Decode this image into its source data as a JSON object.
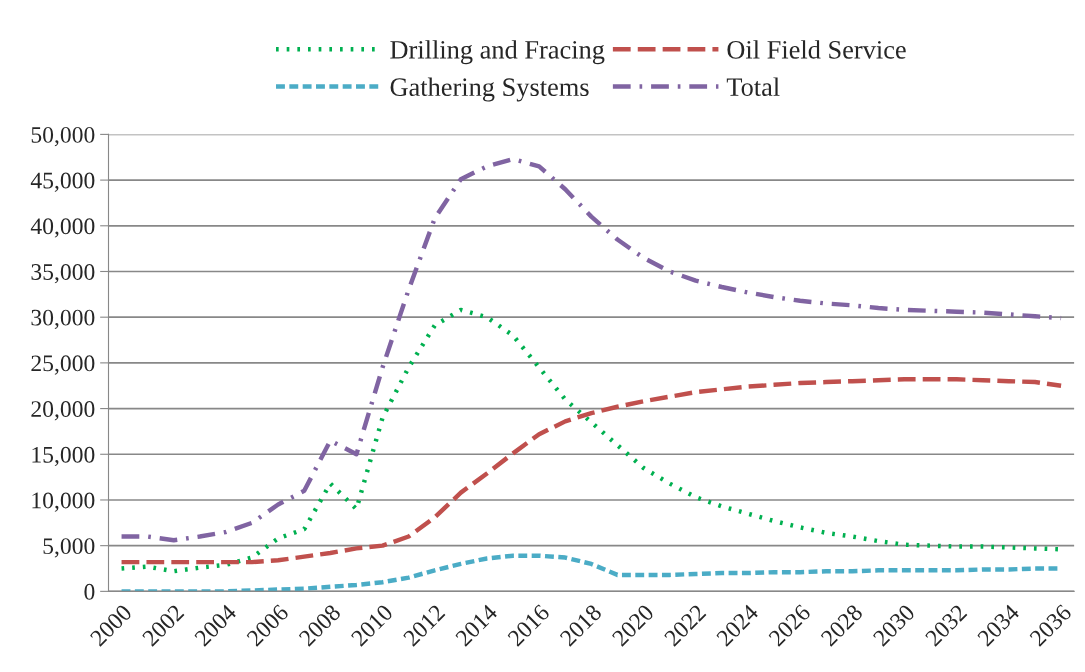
{
  "chart_data": {
    "type": "line",
    "categories": [
      "2000",
      null,
      "2002",
      null,
      "2004",
      null,
      "2006",
      null,
      "2008",
      null,
      "2010",
      null,
      "2012",
      null,
      "2014",
      null,
      "2016",
      null,
      "2018",
      null,
      "2020",
      null,
      "2022",
      null,
      "2024",
      null,
      "2026",
      null,
      "2028",
      null,
      "2030",
      null,
      "2032",
      null,
      "2034",
      null,
      "2036"
    ],
    "series": [
      {
        "name": "Drilling and Fracing",
        "color": "#00b050",
        "line_style": "dotted",
        "values": [
          2500,
          2700,
          2200,
          2600,
          2900,
          3700,
          5800,
          6800,
          11800,
          9000,
          19000,
          24500,
          29100,
          30800,
          30000,
          28000,
          24500,
          21000,
          18500,
          16000,
          13500,
          11800,
          10300,
          9300,
          8500,
          7700,
          7000,
          6400,
          6000,
          5500,
          5100,
          5000,
          4900,
          4900,
          4800,
          4700,
          4600
        ]
      },
      {
        "name": "Oil Field Service",
        "color": "#c0504d",
        "line_style": "dashed",
        "values": [
          3200,
          3200,
          3200,
          3200,
          3200,
          3200,
          3400,
          3800,
          4200,
          4700,
          5000,
          6000,
          8100,
          10800,
          12900,
          15100,
          17200,
          18600,
          19500,
          20200,
          20800,
          21300,
          21800,
          22100,
          22400,
          22600,
          22800,
          22900,
          23000,
          23100,
          23200,
          23200,
          23200,
          23100,
          23000,
          22900,
          22500
        ]
      },
      {
        "name": "Gathering Systems",
        "color": "#4bacc6",
        "line_style": "dashed",
        "values": [
          0,
          0,
          0,
          0,
          0,
          100,
          200,
          300,
          500,
          700,
          1000,
          1500,
          2300,
          3000,
          3600,
          3900,
          3900,
          3700,
          3000,
          1800,
          1800,
          1800,
          1900,
          2000,
          2000,
          2100,
          2100,
          2200,
          2200,
          2300,
          2300,
          2300,
          2300,
          2400,
          2400,
          2500,
          2500
        ]
      },
      {
        "name": "Total",
        "color": "#8064a2",
        "line_style": "dashdot",
        "values": [
          6000,
          6000,
          5600,
          6000,
          6500,
          7500,
          9500,
          11000,
          16500,
          15000,
          24500,
          33000,
          40800,
          45100,
          46500,
          47300,
          46500,
          44000,
          41000,
          38500,
          36500,
          35000,
          34000,
          33300,
          32700,
          32200,
          31800,
          31500,
          31300,
          31000,
          30800,
          30700,
          30600,
          30500,
          30300,
          30100,
          29900
        ]
      }
    ],
    "ylim": [
      0,
      50000
    ],
    "yticks": [
      {
        "value": 0,
        "label": "0"
      },
      {
        "value": 5000,
        "label": "5,000"
      },
      {
        "value": 10000,
        "label": "10,000"
      },
      {
        "value": 15000,
        "label": "15,000"
      },
      {
        "value": 20000,
        "label": "20,000"
      },
      {
        "value": 25000,
        "label": "25,000"
      },
      {
        "value": 30000,
        "label": "30,000"
      },
      {
        "value": 35000,
        "label": "35,000"
      },
      {
        "value": 40000,
        "label": "40,000"
      },
      {
        "value": 45000,
        "label": "45,000"
      },
      {
        "value": 50000,
        "label": "50,000"
      }
    ],
    "grid": "y",
    "legend": "top"
  }
}
